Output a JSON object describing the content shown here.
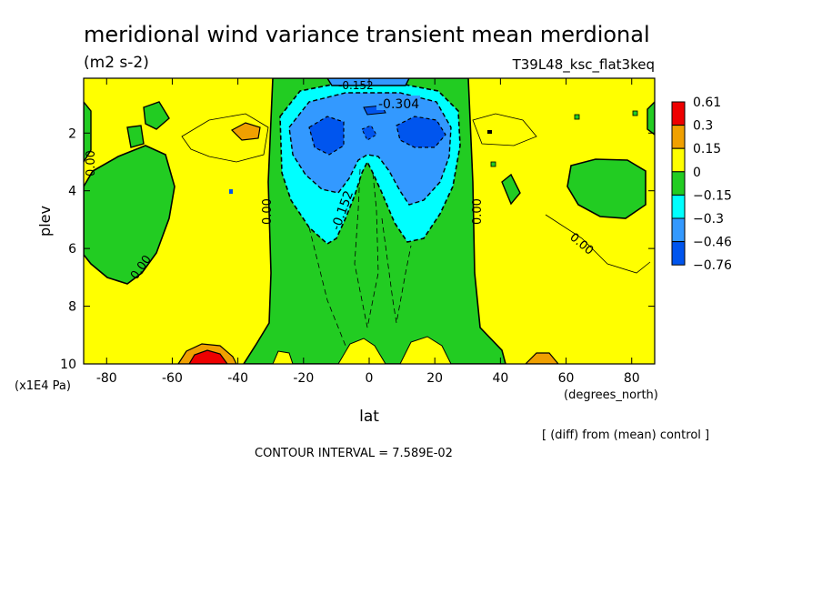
{
  "title": "meridional wind variance transient mean merdional",
  "units": "(m2 s-2)",
  "experiment": "T39L48_ksc_flat3keq",
  "xlabel": "lat",
  "ylabel": "plev",
  "x_units": "(degrees_north)",
  "y_units": "(x1E4 Pa)",
  "diff_note": "[ (diff) from (mean) control ]",
  "contour_interval": "CONTOUR INTERVAL = 7.589E-02",
  "contour_labels": [
    "-0.304",
    "-0.152",
    "-0.152",
    "0.00",
    "0.00",
    "0.00",
    "0.00",
    "0.00"
  ],
  "colors": {
    "red": "#ee0000",
    "orange": "#f0a000",
    "yellow": "#ffff00",
    "green": "#22cc22",
    "cyan": "#00ffff",
    "lightblue": "#3399ff",
    "blue": "#0055ee"
  },
  "chart_data": {
    "type": "heatmap",
    "title": "meridional wind variance transient mean merdional",
    "x_ticks": [
      "-80",
      "-60",
      "-40",
      "-20",
      "0",
      "20",
      "40",
      "60",
      "80"
    ],
    "y_ticks": [
      "2",
      "4",
      "6",
      "8",
      "10"
    ],
    "xlim": [
      -87,
      87
    ],
    "ylim": [
      10,
      0.1
    ],
    "colorbar": {
      "labels": [
        "0.61",
        "0.3",
        "0.15",
        "0",
        "−0.15",
        "−0.3",
        "−0.46",
        "−0.76"
      ],
      "colors": [
        "#ee0000",
        "#f0a000",
        "#ffff00",
        "#22cc22",
        "#00ffff",
        "#3399ff",
        "#0055ee"
      ]
    }
  }
}
